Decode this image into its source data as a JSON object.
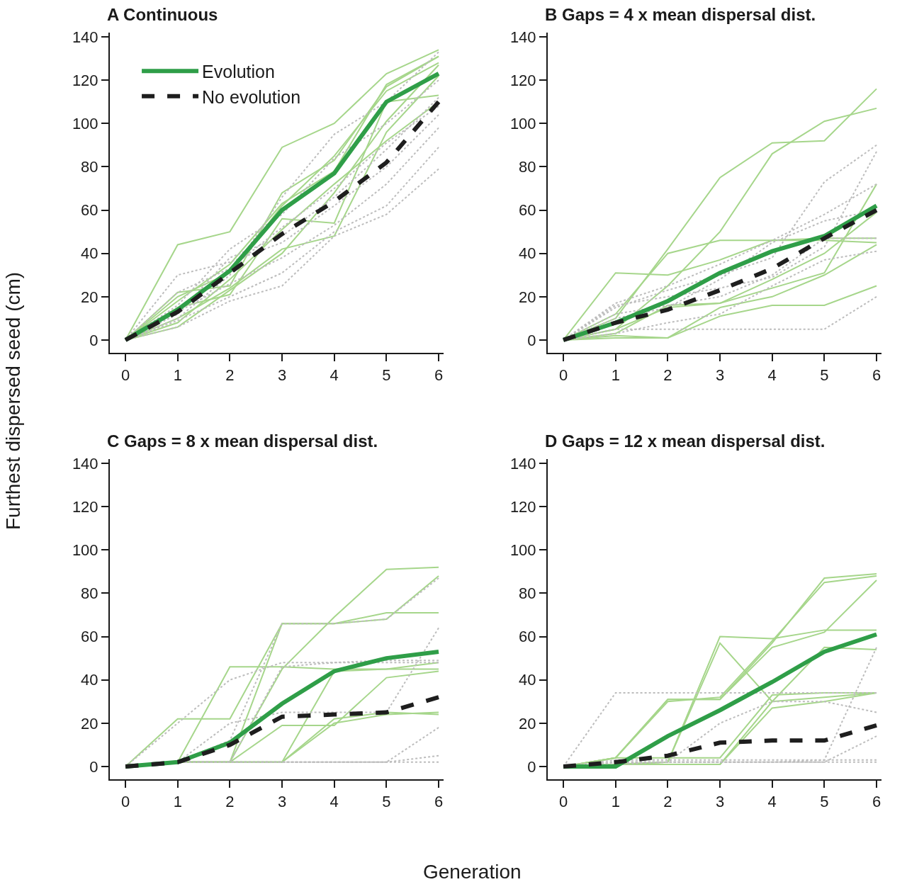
{
  "chart_data": [
    {
      "type": "line",
      "title": "A Continuous",
      "ylabel": "Furthest dispersed seed (cm)",
      "x": [
        0,
        1,
        2,
        3,
        4,
        5,
        6
      ],
      "xlim": [
        -0.3,
        6.1
      ],
      "xticks": [
        0,
        1,
        2,
        3,
        4,
        5,
        6
      ],
      "ylim": [
        -6,
        142
      ],
      "yticks": [
        0,
        20,
        40,
        60,
        80,
        100,
        120,
        140
      ],
      "legend": "top left",
      "marker": "none",
      "series": [
        {
          "name": "Evolution",
          "color": "#2f9e48",
          "line_style": "solid",
          "values": [
            0,
            14,
            32,
            60,
            77,
            110,
            123
          ]
        },
        {
          "name": "No evolution",
          "color": "#1e1e1e",
          "line_style": "dashed",
          "values": [
            0,
            13,
            31,
            49,
            64,
            82,
            110
          ]
        },
        {
          "color": "#a6d68b",
          "line_style": "solid",
          "values": [
            0,
            44,
            50,
            89,
            100,
            123,
            134
          ]
        },
        {
          "color": "#a6d68b",
          "line_style": "solid",
          "values": [
            0,
            22,
            25,
            68,
            83,
            117,
            131
          ]
        },
        {
          "color": "#a6d68b",
          "line_style": "solid",
          "values": [
            0,
            20,
            31,
            62,
            85,
            115,
            128
          ]
        },
        {
          "color": "#a6d68b",
          "line_style": "solid",
          "values": [
            0,
            15,
            21,
            56,
            54,
            110,
            113
          ]
        },
        {
          "color": "#a6d68b",
          "line_style": "solid",
          "values": [
            0,
            10,
            24,
            42,
            48,
            96,
            122
          ]
        },
        {
          "color": "#a6d68b",
          "line_style": "solid",
          "values": [
            0,
            8,
            28,
            51,
            72,
            92,
            110
          ]
        },
        {
          "color": "#a6d68b",
          "line_style": "solid",
          "values": [
            0,
            6,
            23,
            40,
            68,
            101,
            127
          ]
        },
        {
          "color": "#a6d68b",
          "line_style": "solid",
          "values": [
            0,
            18,
            35,
            63,
            78,
            118,
            131
          ]
        },
        {
          "color": "#bdbdbd",
          "line_style": "dotted",
          "values": [
            0,
            6,
            18,
            25,
            48,
            58,
            79
          ]
        },
        {
          "color": "#bdbdbd",
          "line_style": "dotted",
          "values": [
            0,
            9,
            20,
            31,
            50,
            62,
            89
          ]
        },
        {
          "color": "#bdbdbd",
          "line_style": "dotted",
          "values": [
            0,
            13,
            26,
            38,
            53,
            72,
            98
          ]
        },
        {
          "color": "#bdbdbd",
          "line_style": "dotted",
          "values": [
            0,
            30,
            36,
            45,
            62,
            80,
            104
          ]
        },
        {
          "color": "#bdbdbd",
          "line_style": "dotted",
          "values": [
            0,
            12,
            38,
            48,
            66,
            88,
            112
          ]
        },
        {
          "color": "#bdbdbd",
          "line_style": "dotted",
          "values": [
            0,
            16,
            42,
            58,
            84,
            100,
            120
          ]
        },
        {
          "color": "#bdbdbd",
          "line_style": "dotted",
          "values": [
            0,
            22,
            33,
            52,
            70,
            91,
            108
          ]
        },
        {
          "color": "#bdbdbd",
          "line_style": "dotted",
          "values": [
            0,
            10,
            30,
            66,
            95,
            110,
            133
          ]
        }
      ]
    },
    {
      "type": "line",
      "title": "B Gaps = 4 x mean dispersal dist.",
      "x": [
        0,
        1,
        2,
        3,
        4,
        5,
        6
      ],
      "xlim": [
        -0.3,
        6.1
      ],
      "xticks": [
        0,
        1,
        2,
        3,
        4,
        5,
        6
      ],
      "ylim": [
        -6,
        142
      ],
      "yticks": [
        0,
        20,
        40,
        60,
        80,
        100,
        120,
        140
      ],
      "marker": "none",
      "series": [
        {
          "color": "#2f9e48",
          "line_style": "solid",
          "values": [
            0,
            8,
            18,
            31,
            41,
            48,
            62
          ]
        },
        {
          "color": "#1e1e1e",
          "line_style": "dashed",
          "values": [
            0,
            8,
            14,
            23,
            33,
            47,
            60
          ]
        },
        {
          "color": "#a6d68b",
          "line_style": "solid",
          "values": [
            0,
            10,
            42,
            75,
            91,
            92,
            116
          ]
        },
        {
          "color": "#a6d68b",
          "line_style": "solid",
          "values": [
            0,
            5,
            25,
            50,
            86,
            101,
            107
          ]
        },
        {
          "color": "#a6d68b",
          "line_style": "solid",
          "values": [
            0,
            31,
            30,
            37,
            46,
            47,
            47
          ]
        },
        {
          "color": "#a6d68b",
          "line_style": "solid",
          "values": [
            0,
            12,
            40,
            46,
            46,
            46,
            45
          ]
        },
        {
          "color": "#a6d68b",
          "line_style": "solid",
          "values": [
            0,
            5,
            15,
            17,
            24,
            31,
            72
          ]
        },
        {
          "color": "#a6d68b",
          "line_style": "solid",
          "values": [
            0,
            3,
            16,
            17,
            28,
            40,
            59
          ]
        },
        {
          "color": "#a6d68b",
          "line_style": "solid",
          "values": [
            0,
            2,
            1,
            15,
            20,
            30,
            44
          ]
        },
        {
          "color": "#a6d68b",
          "line_style": "solid",
          "values": [
            0,
            1,
            1,
            11,
            16,
            16,
            25
          ]
        },
        {
          "color": "#bdbdbd",
          "line_style": "dotted",
          "values": [
            0,
            5,
            5,
            5,
            5,
            5,
            20
          ]
        },
        {
          "color": "#bdbdbd",
          "line_style": "dotted",
          "values": [
            0,
            16,
            20,
            24,
            29,
            43,
            87
          ]
        },
        {
          "color": "#bdbdbd",
          "line_style": "dotted",
          "values": [
            0,
            15,
            23,
            30,
            38,
            73,
            90
          ]
        },
        {
          "color": "#bdbdbd",
          "line_style": "dotted",
          "values": [
            0,
            17,
            25,
            35,
            46,
            58,
            72
          ]
        },
        {
          "color": "#bdbdbd",
          "line_style": "dotted",
          "values": [
            0,
            3,
            8,
            12,
            25,
            37,
            41
          ]
        },
        {
          "color": "#bdbdbd",
          "line_style": "dotted",
          "values": [
            0,
            12,
            16,
            20,
            30,
            47,
            47
          ]
        },
        {
          "color": "#bdbdbd",
          "line_style": "dotted",
          "values": [
            0,
            10,
            15,
            28,
            45,
            55,
            60
          ]
        }
      ]
    },
    {
      "type": "line",
      "title": "C Gaps = 8 x mean dispersal dist.",
      "xlabel": "Generation",
      "x": [
        0,
        1,
        2,
        3,
        4,
        5,
        6
      ],
      "xlim": [
        -0.3,
        6.1
      ],
      "xticks": [
        0,
        1,
        2,
        3,
        4,
        5,
        6
      ],
      "ylim": [
        -6,
        142
      ],
      "yticks": [
        0,
        20,
        40,
        60,
        80,
        100,
        120,
        140
      ],
      "marker": "none",
      "series": [
        {
          "color": "#2f9e48",
          "line_style": "solid",
          "values": [
            0,
            2,
            11,
            29,
            44,
            50,
            53
          ]
        },
        {
          "color": "#1e1e1e",
          "line_style": "dashed",
          "values": [
            0,
            2,
            10,
            23,
            24,
            25,
            32
          ]
        },
        {
          "color": "#a6d68b",
          "line_style": "solid",
          "values": [
            0,
            22,
            22,
            66,
            66,
            68,
            88
          ]
        },
        {
          "color": "#a6d68b",
          "line_style": "solid",
          "values": [
            0,
            2,
            46,
            46,
            45,
            45,
            45
          ]
        },
        {
          "color": "#a6d68b",
          "line_style": "solid",
          "values": [
            0,
            2,
            2,
            66,
            66,
            71,
            71
          ]
        },
        {
          "color": "#a6d68b",
          "line_style": "solid",
          "values": [
            0,
            2,
            2,
            45,
            69,
            91,
            92
          ]
        },
        {
          "color": "#a6d68b",
          "line_style": "solid",
          "values": [
            0,
            2,
            2,
            19,
            19,
            41,
            44
          ]
        },
        {
          "color": "#a6d68b",
          "line_style": "solid",
          "values": [
            0,
            2,
            2,
            2,
            44,
            45,
            48
          ]
        },
        {
          "color": "#a6d68b",
          "line_style": "solid",
          "values": [
            0,
            2,
            2,
            2,
            20,
            24,
            25
          ]
        },
        {
          "color": "#a6d68b",
          "line_style": "solid",
          "values": [
            0,
            2,
            2,
            2,
            22,
            25,
            24
          ]
        },
        {
          "color": "#bdbdbd",
          "line_style": "dotted",
          "values": [
            0,
            2,
            2,
            2,
            2,
            2,
            5
          ]
        },
        {
          "color": "#bdbdbd",
          "line_style": "dotted",
          "values": [
            0,
            2,
            2,
            2,
            2,
            2,
            2
          ]
        },
        {
          "color": "#bdbdbd",
          "line_style": "dotted",
          "values": [
            0,
            2,
            2,
            2,
            2,
            2,
            18
          ]
        },
        {
          "color": "#bdbdbd",
          "line_style": "dotted",
          "values": [
            0,
            20,
            40,
            48,
            48,
            49,
            49
          ]
        },
        {
          "color": "#bdbdbd",
          "line_style": "dotted",
          "values": [
            0,
            2,
            20,
            25,
            25,
            25,
            64
          ]
        },
        {
          "color": "#bdbdbd",
          "line_style": "dotted",
          "values": [
            0,
            2,
            2,
            46,
            48,
            48,
            48
          ]
        },
        {
          "color": "#bdbdbd",
          "line_style": "dotted",
          "values": [
            0,
            2,
            12,
            66,
            66,
            68,
            87
          ]
        }
      ]
    },
    {
      "type": "line",
      "title": "D Gaps = 12 x mean dispersal dist.",
      "x": [
        0,
        1,
        2,
        3,
        4,
        5,
        6
      ],
      "xlim": [
        -0.3,
        6.1
      ],
      "xticks": [
        0,
        1,
        2,
        3,
        4,
        5,
        6
      ],
      "ylim": [
        -6,
        142
      ],
      "yticks": [
        0,
        20,
        40,
        60,
        80,
        100,
        120,
        140
      ],
      "marker": "none",
      "series": [
        {
          "color": "#2f9e48",
          "line_style": "solid",
          "values": [
            0,
            0,
            14,
            26,
            39,
            53,
            61
          ]
        },
        {
          "color": "#1e1e1e",
          "line_style": "dashed",
          "values": [
            0,
            2,
            5,
            11,
            12,
            12,
            19
          ]
        },
        {
          "color": "#a6d68b",
          "line_style": "solid",
          "values": [
            0,
            4,
            31,
            31,
            57,
            87,
            89
          ]
        },
        {
          "color": "#a6d68b",
          "line_style": "solid",
          "values": [
            0,
            4,
            30,
            32,
            58,
            85,
            88
          ]
        },
        {
          "color": "#a6d68b",
          "line_style": "solid",
          "values": [
            0,
            1,
            2,
            60,
            59,
            63,
            63
          ]
        },
        {
          "color": "#a6d68b",
          "line_style": "solid",
          "values": [
            0,
            1,
            2,
            57,
            30,
            32,
            34
          ]
        },
        {
          "color": "#a6d68b",
          "line_style": "solid",
          "values": [
            0,
            4,
            31,
            31,
            55,
            62,
            86
          ]
        },
        {
          "color": "#a6d68b",
          "line_style": "solid",
          "values": [
            0,
            1,
            1,
            1,
            30,
            55,
            54
          ]
        },
        {
          "color": "#a6d68b",
          "line_style": "solid",
          "values": [
            0,
            1,
            1,
            1,
            27,
            30,
            34
          ]
        },
        {
          "color": "#a6d68b",
          "line_style": "solid",
          "values": [
            0,
            4,
            4,
            4,
            33,
            34,
            34
          ]
        },
        {
          "color": "#bdbdbd",
          "line_style": "dotted",
          "values": [
            0,
            34,
            34,
            34,
            34,
            34,
            34
          ]
        },
        {
          "color": "#bdbdbd",
          "line_style": "dotted",
          "values": [
            0,
            1,
            2,
            20,
            30,
            30,
            25
          ]
        },
        {
          "color": "#bdbdbd",
          "line_style": "dotted",
          "values": [
            0,
            2,
            2,
            2,
            2,
            2,
            2
          ]
        },
        {
          "color": "#bdbdbd",
          "line_style": "dotted",
          "values": [
            0,
            2,
            2,
            2,
            2,
            3,
            55
          ]
        },
        {
          "color": "#bdbdbd",
          "line_style": "dotted",
          "values": [
            0,
            3,
            3,
            3,
            3,
            3,
            3
          ]
        },
        {
          "color": "#bdbdbd",
          "line_style": "dotted",
          "values": [
            0,
            2,
            2,
            2,
            2,
            2,
            14
          ]
        }
      ]
    }
  ]
}
